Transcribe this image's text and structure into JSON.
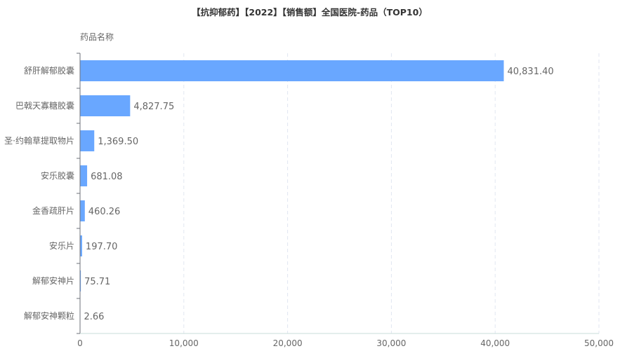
{
  "chart_data": {
    "type": "bar",
    "orientation": "horizontal",
    "title": "【抗抑郁药】【2022】【销售额】全国医院-药品（TOP10）",
    "ylabel": "药品名称",
    "xlabel": "",
    "categories": [
      "舒肝解郁胶囊",
      "巴戟天寡糖胶囊",
      "圣·约翰草提取物片",
      "安乐胶囊",
      "金香疏肝片",
      "安乐片",
      "解郁安神片",
      "解郁安神颗粒"
    ],
    "values": [
      40831.4,
      4827.75,
      1369.5,
      681.08,
      460.26,
      197.7,
      75.71,
      2.66
    ],
    "value_labels": [
      "40,831.40",
      "4,827.75",
      "1,369.50",
      "681.08",
      "460.26",
      "197.70",
      "75.71",
      "2.66"
    ],
    "xlim": [
      0,
      50000
    ],
    "xticks": [
      0,
      10000,
      20000,
      30000,
      40000,
      50000
    ],
    "xtick_labels": [
      "0",
      "10,000",
      "20,000",
      "30,000",
      "40,000",
      "50,000"
    ],
    "grid": "vertical dashed",
    "bar_color": "#69a7ff"
  }
}
